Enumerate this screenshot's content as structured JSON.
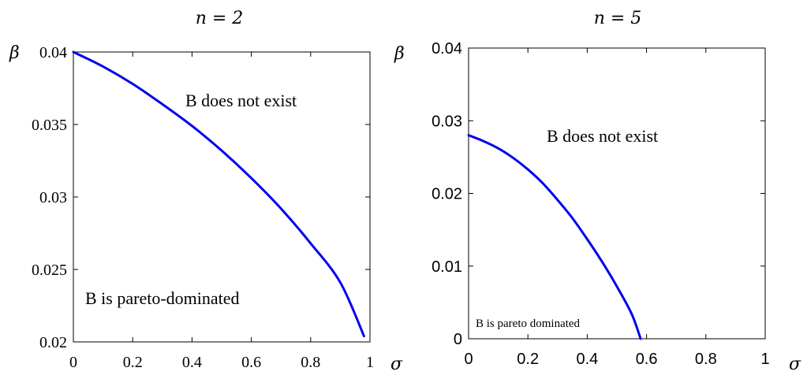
{
  "chart_data": [
    {
      "type": "line",
      "title": "n = 2",
      "xlabel": "σ",
      "ylabel": "β",
      "xlim": [
        0,
        1
      ],
      "ylim": [
        0.02,
        0.04
      ],
      "xticks": [
        0,
        0.2,
        0.4,
        0.6,
        0.8,
        1
      ],
      "xtick_labels": [
        "0",
        "0.2",
        "0.4",
        "0.6",
        "0.8",
        "1"
      ],
      "yticks": [
        0.02,
        0.025,
        0.03,
        0.035,
        0.04
      ],
      "ytick_labels": [
        "0.02",
        "0.025",
        "0.03",
        "0.035",
        "0.04"
      ],
      "grid": false,
      "series": [
        {
          "color": "#0000ee",
          "x": [
            0,
            0.1,
            0.2,
            0.3,
            0.4,
            0.5,
            0.6,
            0.7,
            0.8,
            0.9,
            0.98
          ],
          "y": [
            0.04,
            0.039,
            0.0378,
            0.0364,
            0.0349,
            0.0332,
            0.0313,
            0.0292,
            0.0268,
            0.0241,
            0.0204
          ]
        }
      ],
      "annotations": [
        {
          "text": "B does not exist",
          "x": 0.6,
          "y": 0.0358
        },
        {
          "text": "B is pareto-dominated",
          "x": 0.34,
          "y": 0.0236
        }
      ]
    },
    {
      "type": "line",
      "title": "n = 5",
      "xlabel": "σ",
      "ylabel": "β",
      "xlim": [
        0,
        1
      ],
      "ylim": [
        0,
        0.04
      ],
      "xticks": [
        0,
        0.2,
        0.4,
        0.6,
        0.8,
        1
      ],
      "xtick_labels": [
        "0",
        "0.2",
        "0.4",
        "0.6",
        "0.8",
        "1"
      ],
      "yticks": [
        0,
        0.01,
        0.02,
        0.03,
        0.04
      ],
      "ytick_labels": [
        "0",
        "0.01",
        "0.02",
        "0.03",
        "0.04"
      ],
      "grid": false,
      "series": [
        {
          "color": "#0000ee",
          "x": [
            0,
            0.05,
            0.1,
            0.15,
            0.2,
            0.25,
            0.3,
            0.35,
            0.4,
            0.45,
            0.5,
            0.55,
            0.58
          ],
          "y": [
            0.028,
            0.0272,
            0.0262,
            0.0249,
            0.0233,
            0.0214,
            0.0191,
            0.0166,
            0.0137,
            0.0106,
            0.0072,
            0.0034,
            0
          ]
        }
      ],
      "annotations": [
        {
          "text": "B does not exist",
          "x": 0.61,
          "y": 0.0292
        },
        {
          "text": "B is pareto dominated",
          "x": 0.2,
          "y": 0.0029
        }
      ]
    }
  ]
}
